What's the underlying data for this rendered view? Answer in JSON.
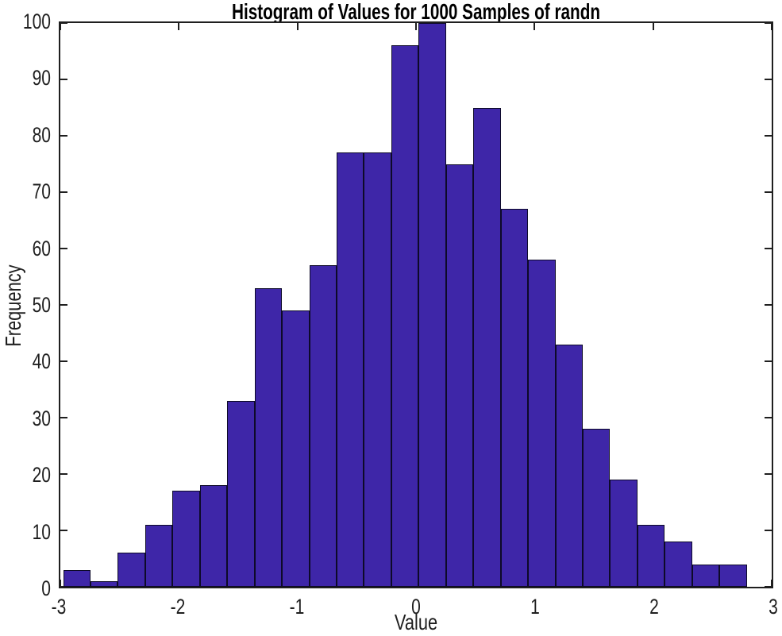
{
  "chart_data": {
    "type": "bar",
    "variant": "histogram",
    "title": "Histogram of Values for 1000 Samples of randn",
    "xlabel": "Value",
    "ylabel": "Frequency",
    "xlim": [
      -3,
      3
    ],
    "ylim": [
      0,
      100
    ],
    "x_ticks": [
      -3,
      -2,
      -1,
      0,
      1,
      2,
      3
    ],
    "x_tick_labels": [
      "-3",
      "-2",
      "-1",
      "0",
      "1",
      "2",
      "3"
    ],
    "y_ticks": [
      0,
      10,
      20,
      30,
      40,
      50,
      60,
      70,
      80,
      90,
      100
    ],
    "y_tick_labels": [
      "0",
      "10",
      "20",
      "30",
      "40",
      "50",
      "60",
      "70",
      "80",
      "90",
      "100"
    ],
    "grid": false,
    "legend": null,
    "total_samples": 1000,
    "bin_edges": [
      -2.976,
      -2.745,
      -2.515,
      -2.284,
      -2.053,
      -1.823,
      -1.592,
      -1.361,
      -1.131,
      -0.9,
      -0.669,
      -0.439,
      -0.208,
      0.023,
      0.253,
      0.484,
      0.715,
      0.945,
      1.176,
      1.407,
      1.637,
      1.868,
      2.099,
      2.329,
      2.56,
      2.791
    ],
    "counts": [
      3,
      1,
      6,
      11,
      17,
      18,
      33,
      53,
      49,
      57,
      77,
      77,
      96,
      100,
      75,
      85,
      67,
      58,
      43,
      28,
      19,
      11,
      8,
      4,
      4
    ],
    "colors": {
      "bar_fill": "#3E26A8",
      "bar_edge": "#0D0A28",
      "axis": "#1F1F1F",
      "title_text": "#000000",
      "background": "#FFFFFF"
    }
  }
}
